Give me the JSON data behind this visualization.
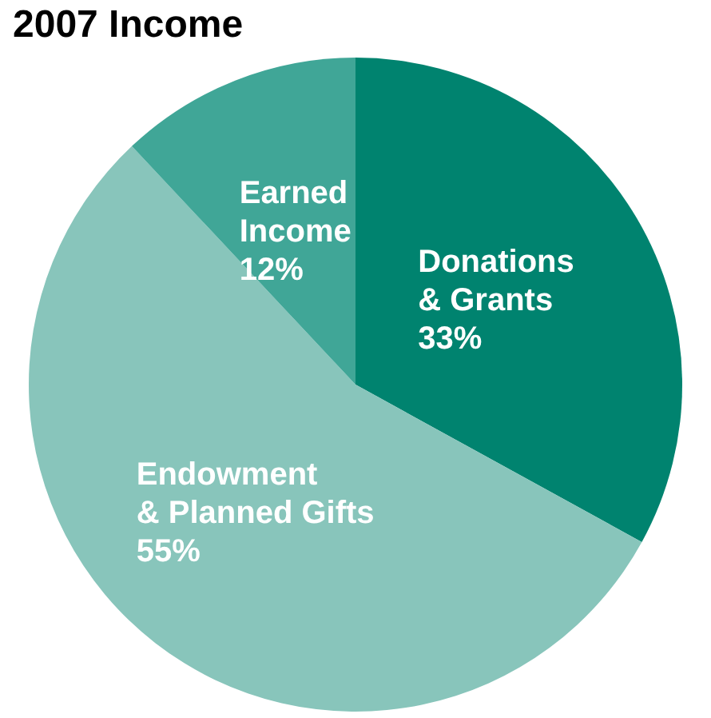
{
  "chart_data": {
    "type": "pie",
    "title": "2007 Income",
    "categories": [
      "Donations\n& Grants",
      "Endowment\n& Planned Gifts",
      "Earned\nIncome"
    ],
    "values": [
      33,
      55,
      12
    ],
    "colors": [
      "#00836f",
      "#88c5bb",
      "#40a697"
    ],
    "value_labels": [
      "33%",
      "55%",
      "12%"
    ],
    "legend": false
  }
}
